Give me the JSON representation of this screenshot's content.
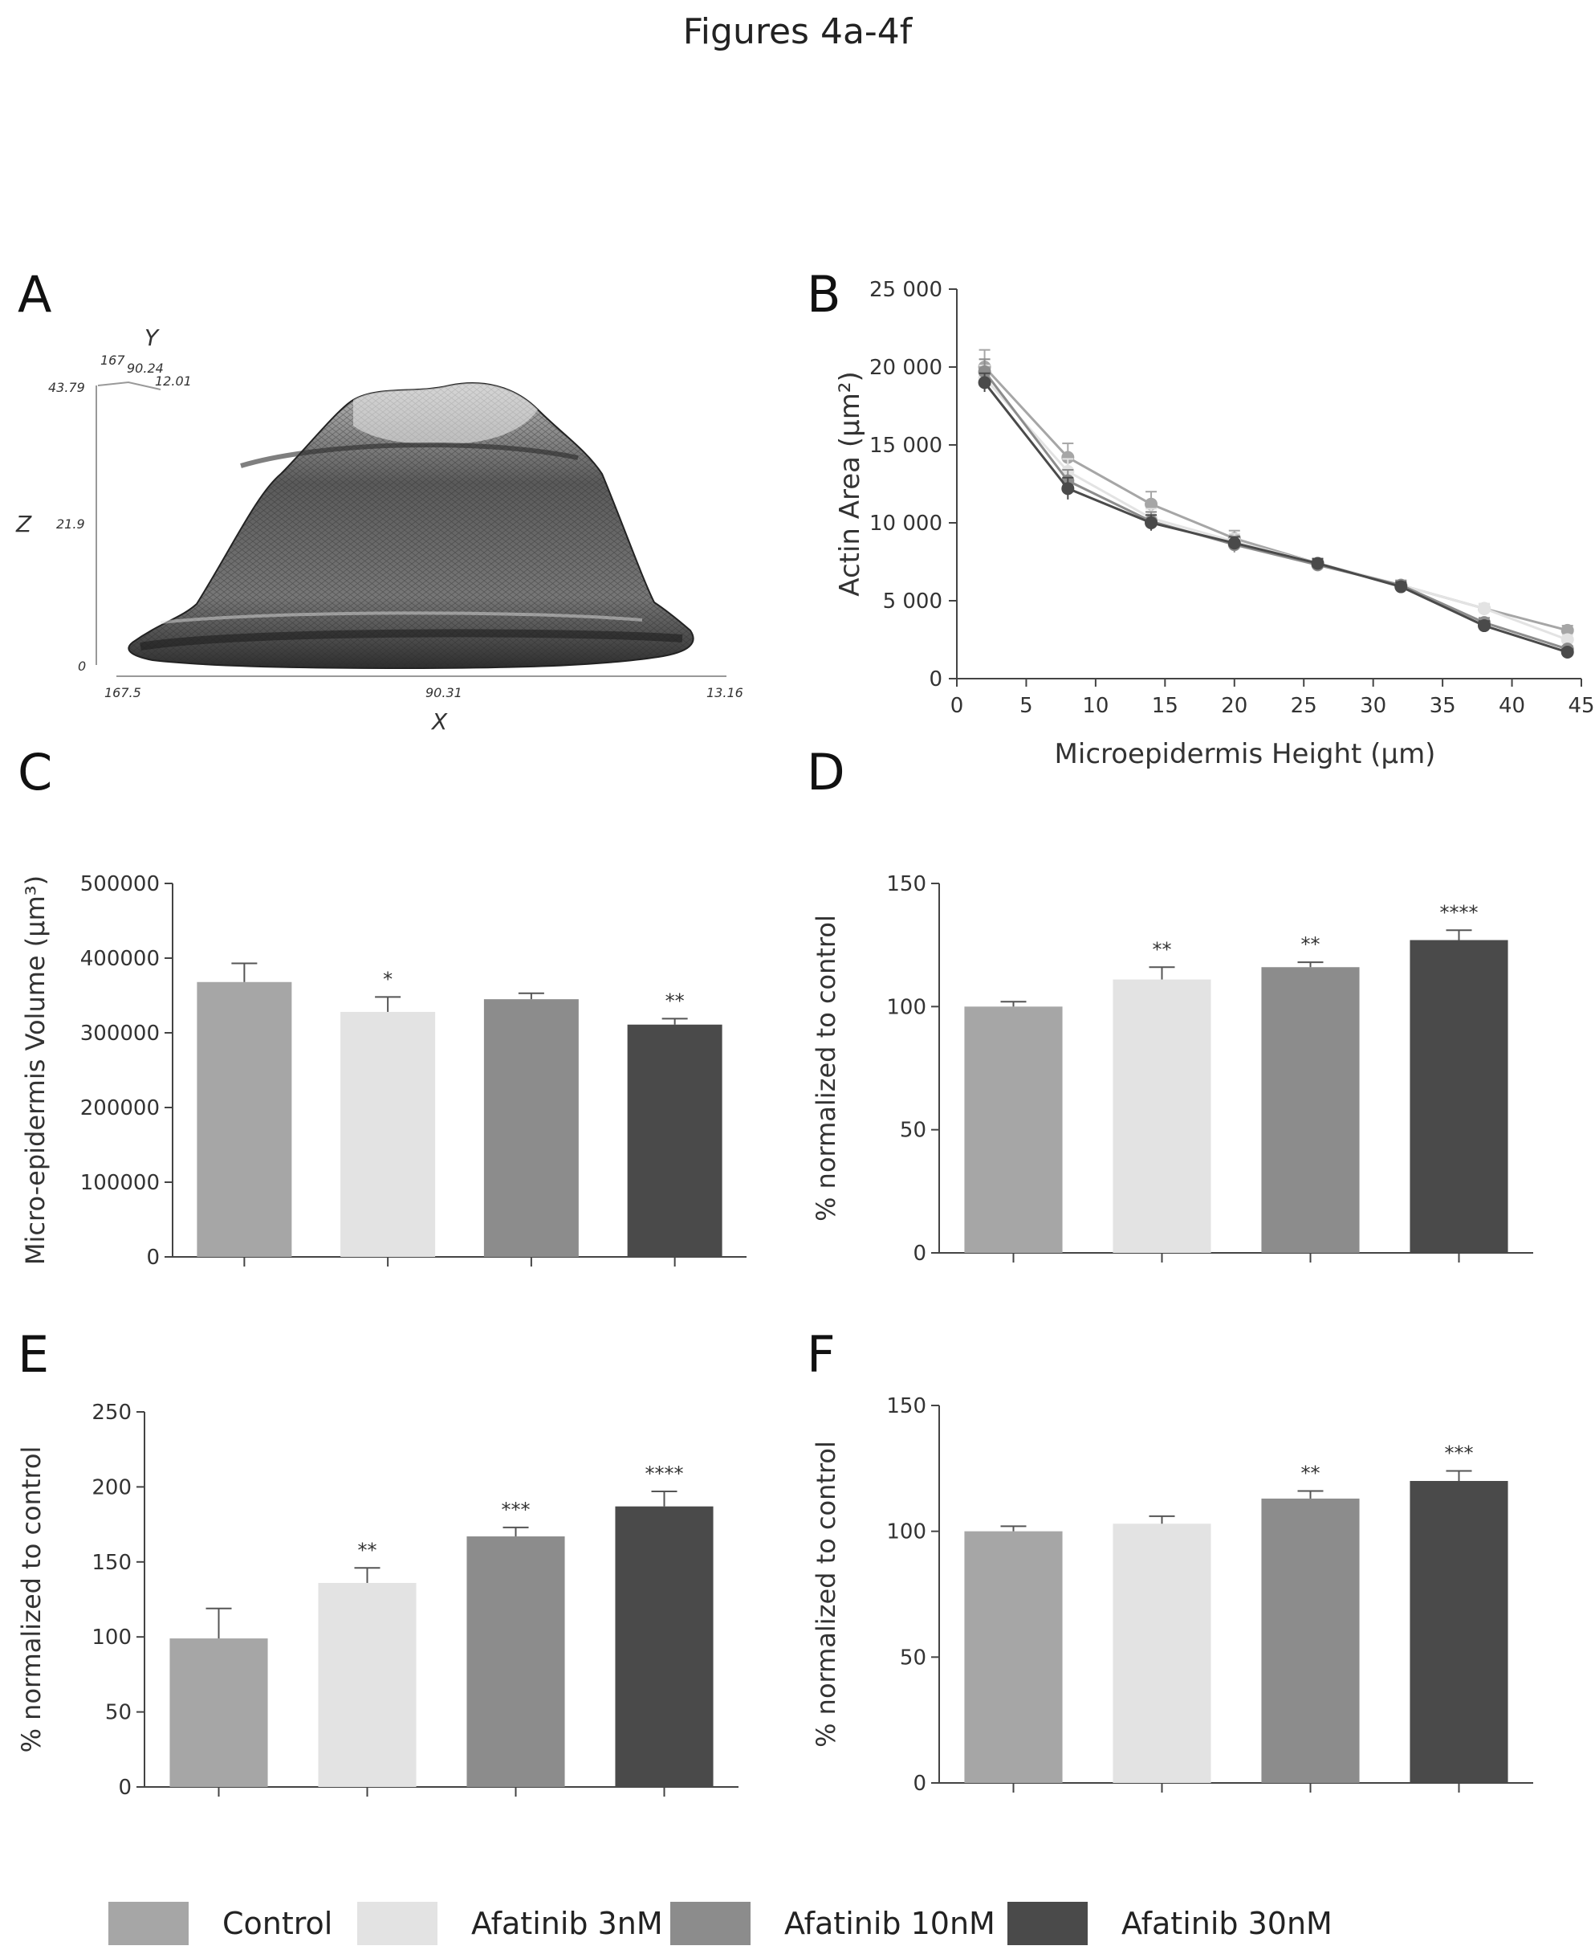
{
  "title": "Figures 4a-4f",
  "panel_labels": [
    "A",
    "B",
    "C",
    "D",
    "E",
    "F"
  ],
  "colors": {
    "Control": "#a6a6a6",
    "Afatinib 3nM": "#e3e3e3",
    "Afatinib 10nM": "#8c8c8c",
    "Afatinib 30nM": "#4a4a4a",
    "axis": "#444444"
  },
  "panel_a": {
    "axis_labels": {
      "x": "X",
      "y": "Y",
      "z": "Z"
    },
    "x_ticks": [
      "167.5",
      "90.31",
      "13.16"
    ],
    "z_ticks": [
      "43.79",
      "21.9",
      "0"
    ],
    "y_ticks": [
      "167",
      "90.24",
      "12.01"
    ]
  },
  "legend": [
    "Control",
    "Afatinib 3nM",
    "Afatinib 10nM",
    "Afatinib 30nM"
  ],
  "chart_data": [
    {
      "panel": "B",
      "type": "line",
      "xlabel": "Microepidermis Height (µm)",
      "ylabel": "Actin Area (µm²)",
      "xlim": [
        0,
        45
      ],
      "ylim": [
        0,
        25000
      ],
      "x_ticks": [
        "0",
        "5",
        "10",
        "15",
        "20",
        "25",
        "30",
        "35",
        "40",
        "45"
      ],
      "y_ticks": [
        "0",
        "5 000",
        "10 000",
        "15 000",
        "20 000",
        "25 000"
      ],
      "x": [
        2,
        8,
        14,
        20,
        26,
        32,
        38,
        44
      ],
      "series": [
        {
          "name": "Control",
          "values": [
            20000,
            14200,
            11200,
            9000,
            7400,
            6000,
            4500,
            3100
          ],
          "err": [
            1100,
            900,
            800,
            500,
            300,
            300,
            300,
            300
          ]
        },
        {
          "name": "Afatinib 3nM",
          "values": [
            19300,
            13300,
            10300,
            8800,
            7400,
            6000,
            4500,
            2500
          ],
          "err": [
            800,
            800,
            600,
            500,
            300,
            300,
            300,
            300
          ]
        },
        {
          "name": "Afatinib 10nM",
          "values": [
            19700,
            12700,
            10100,
            8600,
            7300,
            6000,
            3600,
            1900
          ],
          "err": [
            800,
            700,
            600,
            500,
            300,
            300,
            300,
            200
          ]
        },
        {
          "name": "Afatinib 30nM",
          "values": [
            19000,
            12200,
            10000,
            8700,
            7400,
            5900,
            3400,
            1700
          ],
          "err": [
            600,
            700,
            500,
            400,
            300,
            300,
            300,
            200
          ]
        }
      ]
    },
    {
      "panel": "C",
      "type": "bar",
      "ylabel": "Micro-epidermis Volume (µm³)",
      "ylim": [
        0,
        500000
      ],
      "y_ticks": [
        "0",
        "100000",
        "200000",
        "300000",
        "400000",
        "500000"
      ],
      "categories": [
        "Control",
        "Afatinib 3nM",
        "Afatinib 10nM",
        "Afatinib 30nM"
      ],
      "values": [
        368000,
        328000,
        345000,
        311000
      ],
      "err": [
        25000,
        20000,
        8000,
        8000
      ],
      "sig": [
        "",
        "*",
        "",
        "**"
      ]
    },
    {
      "panel": "D",
      "type": "bar",
      "ylabel": "% normalized to control",
      "ylim": [
        0,
        150
      ],
      "y_ticks": [
        "0",
        "50",
        "100",
        "150"
      ],
      "categories": [
        "Control",
        "Afatinib 3nM",
        "Afatinib 10nM",
        "Afatinib 30nM"
      ],
      "values": [
        100,
        111,
        116,
        127
      ],
      "err": [
        2,
        5,
        2,
        4
      ],
      "sig": [
        "",
        "**",
        "**",
        "****"
      ]
    },
    {
      "panel": "E",
      "type": "bar",
      "ylabel": "% normalized to control",
      "ylim": [
        0,
        250
      ],
      "y_ticks": [
        "0",
        "50",
        "100",
        "150",
        "200",
        "250"
      ],
      "categories": [
        "Control",
        "Afatinib 3nM",
        "Afatinib 10nM",
        "Afatinib 30nM"
      ],
      "values": [
        99,
        136,
        167,
        187
      ],
      "err": [
        20,
        10,
        6,
        10
      ],
      "sig": [
        "",
        "**",
        "***",
        "****"
      ]
    },
    {
      "panel": "F",
      "type": "bar",
      "ylabel": "% normalized to control",
      "ylim": [
        0,
        150
      ],
      "y_ticks": [
        "0",
        "50",
        "100",
        "150"
      ],
      "categories": [
        "Control",
        "Afatinib 3nM",
        "Afatinib 10nM",
        "Afatinib 30nM"
      ],
      "values": [
        100,
        103,
        113,
        120
      ],
      "err": [
        2,
        3,
        3,
        4
      ],
      "sig": [
        "",
        "",
        "**",
        "***"
      ]
    }
  ]
}
